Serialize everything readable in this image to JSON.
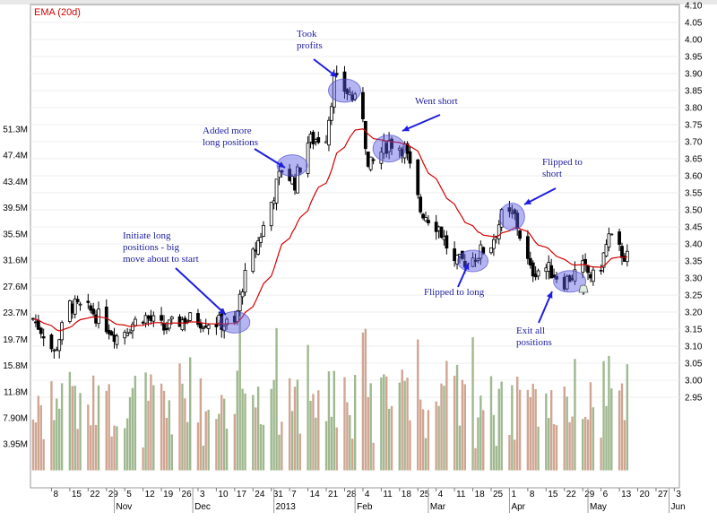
{
  "chart_data": {
    "type": "candlestick",
    "legend": [
      {
        "name": "EMA (20d)",
        "color": "#d40000"
      }
    ],
    "price_axis": {
      "ticks": [
        "4.10",
        "4.05",
        "4.00",
        "3.95",
        "3.90",
        "3.85",
        "3.80",
        "3.75",
        "3.70",
        "3.65",
        "3.60",
        "3.55",
        "3.50",
        "3.45",
        "3.40",
        "3.35",
        "3.30",
        "3.25",
        "3.20",
        "3.15",
        "3.10",
        "3.05",
        "3.00",
        "2.95"
      ],
      "range": [
        2.88,
        4.1
      ]
    },
    "volume_axis": {
      "ticks": [
        "51.3M",
        "47.4M",
        "43.4M",
        "39.5M",
        "35.5M",
        "31.6M",
        "27.6M",
        "23.7M",
        "19.7M",
        "15.8M",
        "11.8M",
        "7.90M",
        "3.95M"
      ],
      "range": [
        0,
        55.3
      ]
    },
    "date_ticks": [
      "8",
      "15",
      "22",
      "29",
      "5",
      "12",
      "19",
      "26",
      "3",
      "10",
      "17",
      "24",
      "31",
      "7",
      "14",
      "21",
      "28",
      "4",
      "11",
      "18",
      "25",
      "4",
      "11",
      "18",
      "25",
      "1",
      "8",
      "15",
      "22",
      "29",
      "6",
      "13",
      "20",
      "27",
      "3"
    ],
    "month_labels": [
      "Nov",
      "Dec",
      "2013",
      "Feb",
      "Mar",
      "Apr",
      "May",
      "Jun"
    ],
    "annotations": [
      {
        "lines": [
          "Took",
          "profits"
        ]
      },
      {
        "lines": [
          "Went short"
        ]
      },
      {
        "lines": [
          "Added more",
          "long positions"
        ]
      },
      {
        "lines": [
          "Flipped to",
          "short"
        ]
      },
      {
        "lines": [
          "Initiate long",
          "positions - big",
          "move about to start"
        ]
      },
      {
        "lines": [
          "Flipped to long"
        ]
      },
      {
        "lines": [
          "Exit all",
          "positions"
        ]
      }
    ],
    "waypoints": [
      {
        "date": "2012-10-01",
        "close": 3.18
      },
      {
        "date": "2012-10-05",
        "close": 3.14
      },
      {
        "date": "2012-10-09",
        "close": 3.08
      },
      {
        "date": "2012-10-15",
        "close": 3.22
      },
      {
        "date": "2012-10-24",
        "close": 3.2
      },
      {
        "date": "2012-11-02",
        "close": 3.13
      },
      {
        "date": "2012-11-12",
        "close": 3.19
      },
      {
        "date": "2012-11-20",
        "close": 3.15
      },
      {
        "date": "2012-11-28",
        "close": 3.18
      },
      {
        "date": "2012-12-10",
        "close": 3.17
      },
      {
        "date": "2012-12-17",
        "close": 3.16
      },
      {
        "date": "2012-12-20",
        "close": 3.28
      },
      {
        "date": "2012-12-28",
        "close": 3.45
      },
      {
        "date": "2013-01-04",
        "close": 3.62
      },
      {
        "date": "2013-01-09",
        "close": 3.58
      },
      {
        "date": "2013-01-14",
        "close": 3.7
      },
      {
        "date": "2013-01-21",
        "close": 3.72
      },
      {
        "date": "2013-01-24",
        "close": 3.88
      },
      {
        "date": "2013-01-30",
        "close": 3.84
      },
      {
        "date": "2013-02-04",
        "close": 3.78
      },
      {
        "date": "2013-02-06",
        "close": 3.62
      },
      {
        "date": "2013-02-14",
        "close": 3.7
      },
      {
        "date": "2013-02-20",
        "close": 3.68
      },
      {
        "date": "2013-02-26",
        "close": 3.5
      },
      {
        "date": "2013-03-05",
        "close": 3.45
      },
      {
        "date": "2013-03-11",
        "close": 3.34
      },
      {
        "date": "2013-03-18",
        "close": 3.36
      },
      {
        "date": "2013-03-25",
        "close": 3.4
      },
      {
        "date": "2013-03-29",
        "close": 3.48
      },
      {
        "date": "2013-04-03",
        "close": 3.48
      },
      {
        "date": "2013-04-09",
        "close": 3.32
      },
      {
        "date": "2013-04-15",
        "close": 3.33
      },
      {
        "date": "2013-04-22",
        "close": 3.29
      },
      {
        "date": "2013-04-29",
        "close": 3.33
      },
      {
        "date": "2013-05-03",
        "close": 3.3
      },
      {
        "date": "2013-05-06",
        "close": 3.34
      },
      {
        "date": "2013-05-09",
        "close": 3.42
      },
      {
        "date": "2013-05-13",
        "close": 3.38
      },
      {
        "date": "2013-05-16",
        "close": 3.36
      }
    ]
  }
}
